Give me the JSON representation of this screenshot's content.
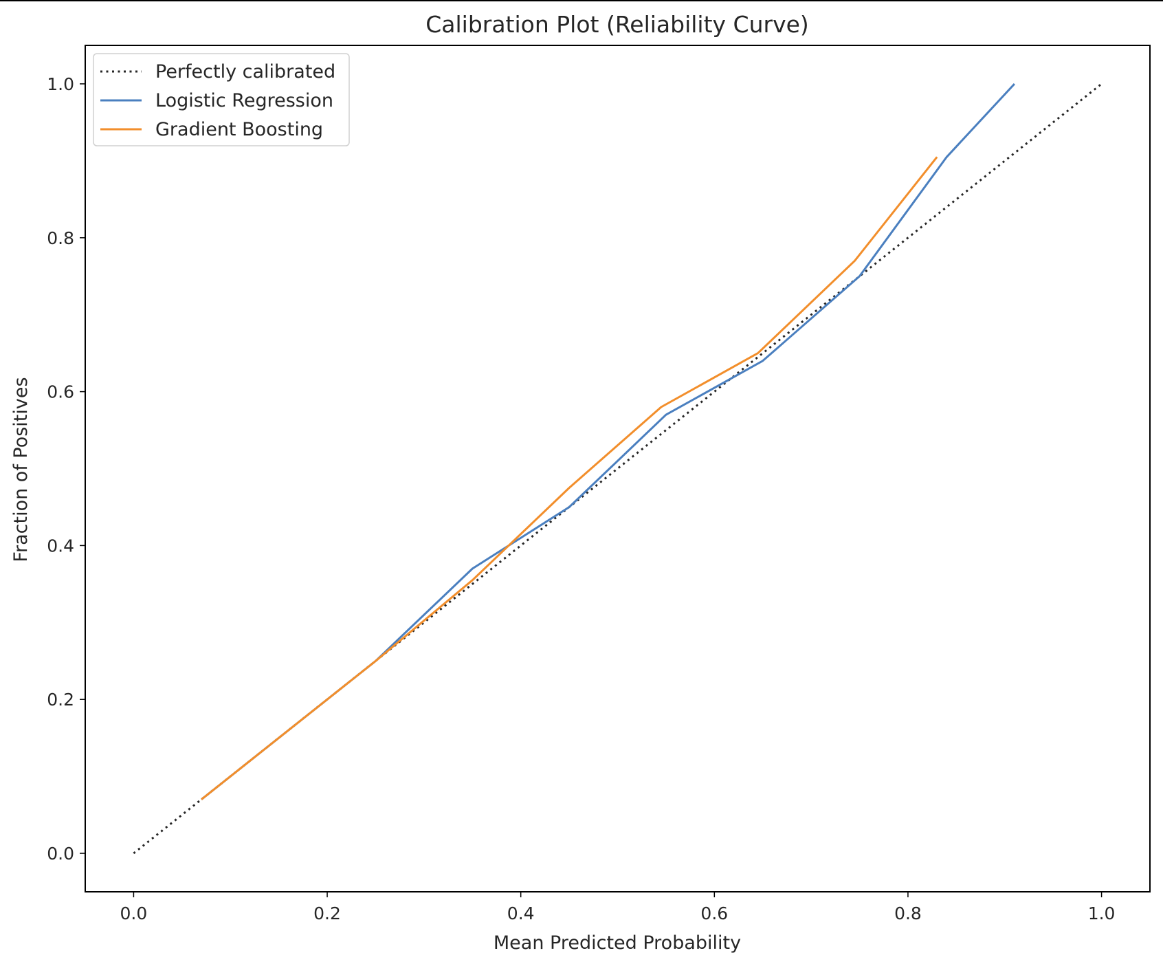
{
  "chart_data": {
    "type": "line",
    "title": "Calibration Plot (Reliability Curve)",
    "xlabel": "Mean Predicted Probability",
    "ylabel": "Fraction of Positives",
    "xlim": [
      -0.05,
      1.05
    ],
    "ylim": [
      -0.05,
      1.05
    ],
    "xticks": [
      0.0,
      0.2,
      0.4,
      0.6,
      0.8,
      1.0
    ],
    "xtick_labels": [
      "0.0",
      "0.2",
      "0.4",
      "0.6",
      "0.8",
      "1.0"
    ],
    "yticks": [
      0.0,
      0.2,
      0.4,
      0.6,
      0.8,
      1.0
    ],
    "ytick_labels": [
      "0.0",
      "0.2",
      "0.4",
      "0.6",
      "0.8",
      "1.0"
    ],
    "grid": false,
    "legend_position": "upper-left",
    "series": [
      {
        "name": "Perfectly calibrated",
        "color": "#262626",
        "style": "dotted",
        "x": [
          0.0,
          1.0
        ],
        "y": [
          0.0,
          1.0
        ]
      },
      {
        "name": "Logistic Regression",
        "color": "#4a7fbf",
        "style": "solid",
        "x": [
          0.07,
          0.15,
          0.25,
          0.35,
          0.45,
          0.55,
          0.65,
          0.75,
          0.84,
          0.91
        ],
        "y": [
          0.07,
          0.15,
          0.25,
          0.37,
          0.45,
          0.57,
          0.64,
          0.75,
          0.905,
          1.0
        ]
      },
      {
        "name": "Gradient Boosting",
        "color": "#f28e2b",
        "style": "solid",
        "x": [
          0.07,
          0.15,
          0.25,
          0.35,
          0.45,
          0.545,
          0.645,
          0.745,
          0.83
        ],
        "y": [
          0.07,
          0.15,
          0.25,
          0.355,
          0.475,
          0.58,
          0.65,
          0.77,
          0.905
        ]
      }
    ]
  }
}
